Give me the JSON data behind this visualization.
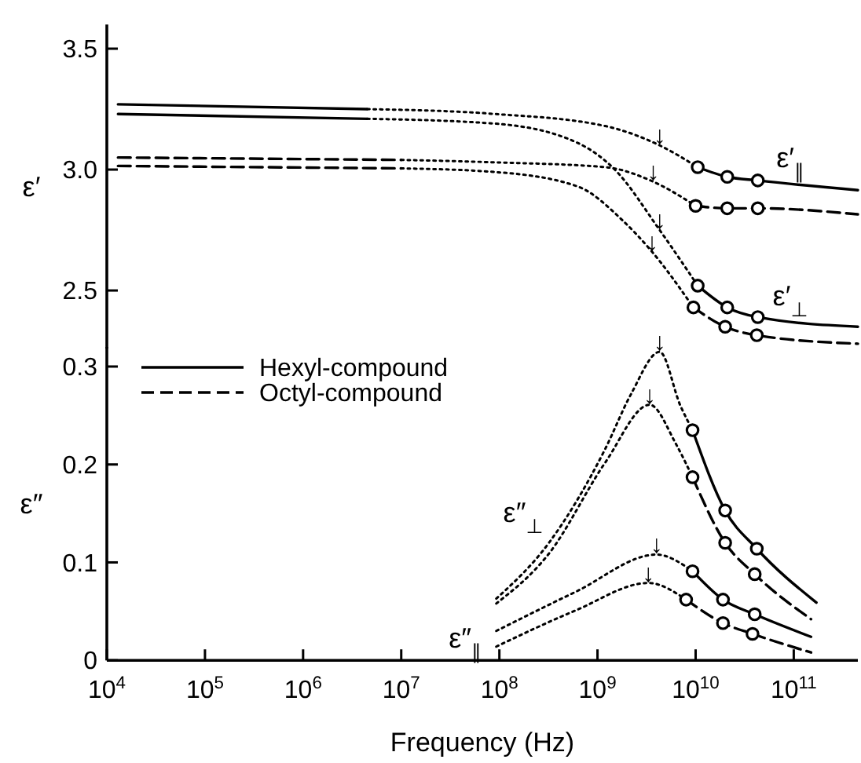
{
  "chart_data": [
    {
      "type": "line",
      "ylabel": "ε′",
      "xlim": [
        10000.0,
        450000000000.0
      ],
      "log": "x",
      "ylim": [
        2.26,
        3.6
      ],
      "yticks": [
        {
          "value": 2.5,
          "label": "2.5"
        },
        {
          "value": 3,
          "label": "3.0"
        },
        {
          "value": 3.5,
          "label": "3.5"
        }
      ],
      "tick_labels": "y",
      "annotations": [
        "ε′$_{∥}$",
        "ε′$_{⊥}$",
        {
          "text": "↓",
          "x": 4300000000.0,
          "y": 3.1
        },
        {
          "text": "↓",
          "x": 4300000000.0,
          "y": 2.75
        },
        {
          "text": "↓",
          "x": 3700000000.0,
          "y": 2.95
        },
        {
          "text": "↓",
          "x": 3600000000.0,
          "y": 2.66
        }
      ],
      "series": [
        {
          "type": "line",
          "line_style": "solid",
          "color": "#000000",
          "x": [
            13000.0,
            4500000.0
          ],
          "values": [
            3.27,
            3.25
          ]
        },
        {
          "type": "line",
          "line_style": "dotted",
          "color": "#000000",
          "x": [
            4500000.0,
            90000000.0,
            1200000000.0,
            4300000000.0,
            10500000000.0
          ],
          "values": [
            3.25,
            3.23,
            3.18,
            3.1,
            3.01
          ]
        },
        {
          "type": "line",
          "line_style": "solid",
          "color": "#000000",
          "x": [
            10500000000.0,
            21000000000.0,
            43000000000.0,
            450000000000.0
          ],
          "values": [
            3.01,
            2.97,
            2.955,
            2.915
          ]
        },
        {
          "type": "scatter",
          "marker": "circle",
          "color": "#000000",
          "x": [
            10500000000.0,
            21000000000.0,
            43000000000.0
          ],
          "values": [
            3.01,
            2.97,
            2.955
          ]
        },
        {
          "type": "line",
          "line_style": "solid",
          "color": "#000000",
          "x": [
            13000.0,
            4500000.0
          ],
          "values": [
            3.23,
            3.21
          ]
        },
        {
          "type": "line",
          "line_style": "dotted",
          "color": "#000000",
          "x": [
            4500000.0,
            90000000.0,
            630000000.0,
            1500000000.0,
            4300000000.0,
            10500000000.0
          ],
          "values": [
            3.21,
            3.19,
            3.11,
            3.0,
            2.75,
            2.52
          ]
        },
        {
          "type": "line",
          "line_style": "solid",
          "color": "#000000",
          "x": [
            10500000000.0,
            21000000000.0,
            43000000000.0,
            450000000000.0
          ],
          "values": [
            2.52,
            2.43,
            2.39,
            2.35
          ]
        },
        {
          "type": "scatter",
          "marker": "circle",
          "color": "#000000",
          "x": [
            10500000000.0,
            21000000000.0,
            43000000000.0
          ],
          "values": [
            2.52,
            2.43,
            2.39
          ]
        },
        {
          "type": "line",
          "line_style": "dashed",
          "color": "#000000",
          "x": [
            13000.0,
            10000000.0
          ],
          "values": [
            3.05,
            3.04
          ]
        },
        {
          "type": "line",
          "line_style": "dotted",
          "color": "#000000",
          "x": [
            10000000.0,
            90000000.0,
            1200000000.0,
            3700000000.0,
            10000000000.0
          ],
          "values": [
            3.04,
            3.03,
            3.01,
            2.95,
            2.85
          ]
        },
        {
          "type": "line",
          "line_style": "dashed",
          "color": "#000000",
          "x": [
            10000000000.0,
            21000000000.0,
            43000000000.0,
            450000000000.0
          ],
          "values": [
            2.85,
            2.84,
            2.84,
            2.815
          ]
        },
        {
          "type": "scatter",
          "marker": "circle",
          "color": "#000000",
          "x": [
            10000000000.0,
            21000000000.0,
            43000000000.0
          ],
          "values": [
            2.85,
            2.84,
            2.84
          ]
        },
        {
          "type": "line",
          "line_style": "dashed",
          "color": "#000000",
          "x": [
            13000.0,
            10000000.0
          ],
          "values": [
            3.015,
            3.005
          ]
        },
        {
          "type": "line",
          "line_style": "dotted",
          "color": "#000000",
          "x": [
            10000000.0,
            90000000.0,
            630000000.0,
            1800000000.0,
            3600000000.0,
            9500000000.0
          ],
          "values": [
            3.005,
            2.99,
            2.93,
            2.79,
            2.66,
            2.43
          ]
        },
        {
          "type": "line",
          "line_style": "dashed",
          "color": "#000000",
          "x": [
            9500000000.0,
            20000000000.0,
            42000000000.0,
            450000000000.0
          ],
          "values": [
            2.43,
            2.35,
            2.315,
            2.28
          ]
        },
        {
          "type": "scatter",
          "marker": "circle",
          "color": "#000000",
          "x": [
            9500000000.0,
            20000000000.0,
            42000000000.0
          ],
          "values": [
            2.43,
            2.35,
            2.315
          ]
        }
      ]
    },
    {
      "type": "line",
      "ylabel": "ε″",
      "xlabel": "Frequency (Hz)",
      "xlim": [
        10000.0,
        450000000000.0
      ],
      "log": "x",
      "ylim": [
        0,
        0.32
      ],
      "yticks": [
        0,
        0.1,
        0.2,
        0.3
      ],
      "legend": "top left",
      "xticks": [
        {
          "value": 10000.0,
          "label": "10$^{4}$"
        },
        {
          "value": 100000.0,
          "label": "10$^{5}$"
        },
        {
          "value": 1000000.0,
          "label": "10$^{6}$"
        },
        {
          "value": 10000000.0,
          "label": "10$^{7}$"
        },
        {
          "value": 100000000.0,
          "label": "10$^{8}$"
        },
        {
          "value": 1000000000.0,
          "label": "10$^{9}$"
        },
        {
          "value": 10000000000.0,
          "label": "10$^{10}$"
        },
        {
          "value": 100000000000.0,
          "label": "10$^{11}$"
        }
      ],
      "annotations": [
        "ε″$_{⊥}$",
        "ε″$_{∥}$",
        {
          "text": "↓",
          "x": 4300000000.0,
          "y": 0.315
        },
        {
          "text": "↓",
          "x": 3400000000.0,
          "y": 0.261
        },
        {
          "text": "↓",
          "x": 4000000000.0,
          "y": 0.108
        },
        {
          "text": "↓",
          "x": 3300000000.0,
          "y": 0.079
        }
      ],
      "series": [
        {
          "type": "line",
          "line_style": "dotted",
          "color": "#000000",
          "x": [
            93000000.0,
            320000000.0,
            1200000000.0,
            2200000000.0,
            4300000000.0,
            7000000000.0,
            9300000000.0
          ],
          "values": [
            0.063,
            0.12,
            0.216,
            0.272,
            0.315,
            0.26,
            0.235
          ]
        },
        {
          "type": "line",
          "name": "Hexyl-compound",
          "line_style": "solid",
          "color": "#000000",
          "x": [
            9300000000.0,
            20000000000.0,
            42000000000.0,
            170000000000.0
          ],
          "values": [
            0.235,
            0.153,
            0.114,
            0.059
          ]
        },
        {
          "type": "scatter",
          "marker": "circle",
          "color": "#000000",
          "x": [
            9300000000.0,
            20000000000.0,
            42000000000.0
          ],
          "values": [
            0.235,
            0.153,
            0.114
          ]
        },
        {
          "type": "line",
          "line_style": "dotted",
          "color": "#000000",
          "x": [
            93000000.0,
            320000000.0,
            1200000000.0,
            3400000000.0,
            6300000000.0,
            9300000000.0
          ],
          "values": [
            0.058,
            0.109,
            0.202,
            0.261,
            0.221,
            0.187
          ]
        },
        {
          "type": "line",
          "name": "Octyl-compound",
          "line_style": "dashed",
          "color": "#000000",
          "x": [
            9300000000.0,
            20000000000.0,
            40000000000.0,
            150000000000.0
          ],
          "values": [
            0.187,
            0.12,
            0.088,
            0.042
          ]
        },
        {
          "type": "scatter",
          "marker": "circle",
          "color": "#000000",
          "x": [
            9300000000.0,
            20000000000.0,
            40000000000.0
          ],
          "values": [
            0.187,
            0.12,
            0.088
          ]
        },
        {
          "type": "line",
          "line_style": "dotted",
          "color": "#000000",
          "x": [
            93000000.0,
            600000000.0,
            4000000000.0,
            9300000000.0
          ],
          "values": [
            0.03,
            0.07,
            0.108,
            0.091
          ]
        },
        {
          "type": "line",
          "line_style": "solid",
          "color": "#000000",
          "x": [
            9300000000.0,
            19000000000.0,
            40000000000.0,
            150000000000.0
          ],
          "values": [
            0.091,
            0.062,
            0.047,
            0.024
          ]
        },
        {
          "type": "scatter",
          "marker": "circle",
          "color": "#000000",
          "x": [
            9300000000.0,
            19000000000.0,
            40000000000.0
          ],
          "values": [
            0.091,
            0.062,
            0.047
          ]
        },
        {
          "type": "line",
          "line_style": "dotted",
          "color": "#000000",
          "x": [
            93000000.0,
            600000000.0,
            3300000000.0,
            8000000000.0
          ],
          "values": [
            0.014,
            0.051,
            0.079,
            0.062
          ]
        },
        {
          "type": "line",
          "line_style": "dashed",
          "color": "#000000",
          "x": [
            8000000000.0,
            19000000000.0,
            38000000000.0,
            150000000000.0
          ],
          "values": [
            0.062,
            0.038,
            0.027,
            0.008
          ]
        },
        {
          "type": "scatter",
          "marker": "circle",
          "color": "#000000",
          "x": [
            8000000000.0,
            19000000000.0,
            38000000000.0
          ],
          "values": [
            0.062,
            0.038,
            0.027
          ]
        }
      ]
    }
  ]
}
